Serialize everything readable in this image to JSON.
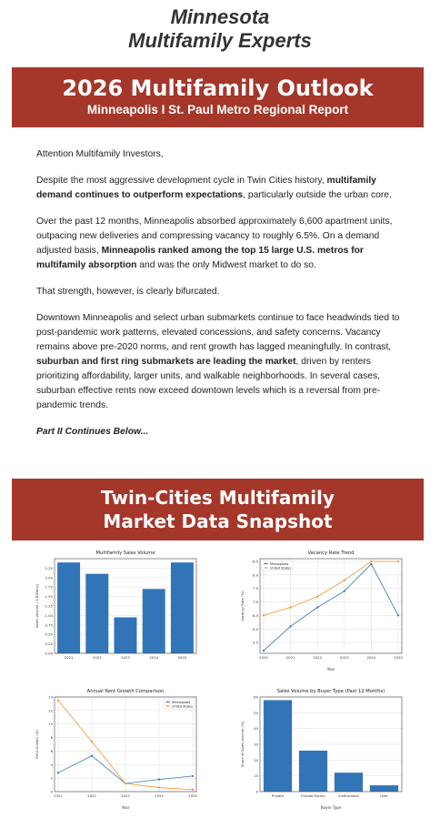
{
  "brand": {
    "line1": "Minnesota",
    "line2": "Multifamily Experts"
  },
  "header_banner": {
    "title": "2026 Multifamily Outlook",
    "subtitle": "Minneapolis I St. Paul Metro Regional Report"
  },
  "letter": {
    "greeting": "Attention Multifamily Investors,",
    "p1_a": "Despite the most aggressive development cycle in Twin Cities history, ",
    "p1_b": "multifamily demand continues to outperform expectations",
    "p1_c": ", particularly outside the urban core.",
    "p2_a": "Over the past 12 months, Minneapolis absorbed approximately 6,600 apartment units, outpacing new deliveries and compressing vacancy to roughly 6.5%. On a demand adjusted basis, ",
    "p2_b": "Minneapolis ranked among the top 15 large U.S. metros for multifamily absorption",
    "p2_c": " and was the only Midwest market to do so.",
    "p3": "That strength, however, is clearly bifurcated.",
    "p4_a": "Downtown Minneapolis and select urban submarkets continue to face headwinds tied to post-pandemic work patterns, elevated concessions, and safety concerns. Vacancy remains above pre-2020 norms, and rent growth has lagged meaningfully. In contrast, ",
    "p4_b": "suburban and first ring submarkets are leading the market",
    "p4_c": ", driven by renters prioritizing affordability, larger units, and walkable neighborhoods. In several cases, suburban effective rents now exceed downtown levels which is a reversal from pre-pandemic trends.",
    "continues": "Part II Continues Below..."
  },
  "snapshot_banner": {
    "line1": "Twin-Cities Multifamily",
    "line2": "Market Data Snapshot"
  },
  "colors": {
    "banner": "#a5372a",
    "blue": "#3274b8",
    "orange": "#f5922a"
  },
  "chart_data": [
    {
      "type": "bar",
      "title": "Multifamily Sales Volume",
      "xlabel": "",
      "ylabel": "Sales Volume ( $ Billions)",
      "categories": [
        "2021",
        "2022",
        "2023",
        "2024",
        "2025"
      ],
      "values": [
        2.4,
        2.1,
        0.95,
        1.7,
        2.4
      ],
      "ylim": [
        0,
        2.5
      ],
      "yticks": [
        "0.00",
        "0.25",
        "0.50",
        "0.75",
        "1.00",
        "1.25",
        "1.50",
        "1.75",
        "2.00",
        "2.25"
      ],
      "ytick_values": [
        0,
        0.25,
        0.5,
        0.75,
        1.0,
        1.25,
        1.5,
        1.75,
        2.0,
        2.25
      ],
      "grid": true
    },
    {
      "type": "line",
      "title": "Vacancy Rate Trend",
      "xlabel": "Year",
      "ylabel": "Vacancy Rate (%)",
      "x": [
        "2020",
        "2021",
        "2022",
        "2023",
        "2024",
        "2025"
      ],
      "series": [
        {
          "name": "Minneapolis",
          "values": [
            5.2,
            6.1,
            6.8,
            7.4,
            8.4,
            6.5
          ]
        },
        {
          "name": "United States",
          "values": [
            6.5,
            6.8,
            7.2,
            7.8,
            8.5,
            8.5
          ]
        }
      ],
      "ylim": [
        5.1,
        8.6
      ],
      "yticks": [
        "5.5",
        "6.0",
        "6.5",
        "7.0",
        "7.5",
        "8.0",
        "8.5"
      ],
      "ytick_values": [
        5.5,
        6.0,
        6.5,
        7.0,
        7.5,
        8.0,
        8.5
      ],
      "legend": "top-left",
      "grid": true
    },
    {
      "type": "line",
      "title": "Annual Rent Growth Comparison",
      "xlabel": "Year",
      "ylabel": "Rent Growth (%)",
      "x": [
        "2021",
        "2022",
        "2023",
        "2024",
        "2025"
      ],
      "series": [
        {
          "name": "Minneapolis",
          "values": [
            2.8,
            5.3,
            1.2,
            1.8,
            2.3
          ]
        },
        {
          "name": "United States",
          "values": [
            13.5,
            7.4,
            1.2,
            0.6,
            0.3
          ]
        }
      ],
      "ylim": [
        0,
        14
      ],
      "yticks": [
        "0",
        "2",
        "4",
        "6",
        "8",
        "10",
        "12",
        "14"
      ],
      "ytick_values": [
        0,
        2,
        4,
        6,
        8,
        10,
        12,
        14
      ],
      "legend": "top-right",
      "grid": true
    },
    {
      "type": "bar",
      "title": "Sales Volume by Buyer Type (Past 12 Months)",
      "xlabel": "Buyer Type",
      "ylabel": "Share of Sales volume (%)",
      "categories": [
        "Private",
        "Private Equity",
        "Institutional",
        "User"
      ],
      "values": [
        58,
        26,
        12,
        4
      ],
      "ylim": [
        0,
        60
      ],
      "yticks": [
        "0",
        "10",
        "20",
        "30",
        "40",
        "50",
        "60"
      ],
      "ytick_values": [
        0,
        10,
        20,
        30,
        40,
        50,
        60
      ],
      "grid": true
    }
  ]
}
